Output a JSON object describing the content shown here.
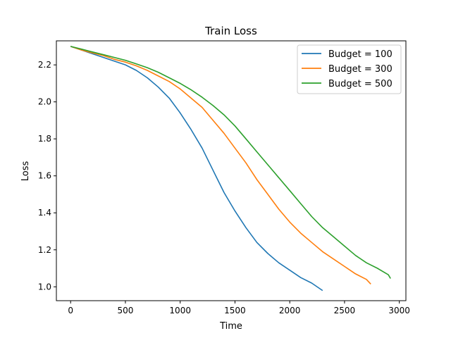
{
  "chart_data": {
    "type": "line",
    "title": "Train Loss",
    "xlabel": "Time",
    "ylabel": "Loss",
    "xlim": [
      -130,
      3060
    ],
    "ylim": [
      0.925,
      2.33
    ],
    "xticks": [
      0,
      500,
      1000,
      1500,
      2000,
      2500,
      3000
    ],
    "yticks": [
      1.0,
      1.2,
      1.4,
      1.6,
      1.8,
      2.0,
      2.2
    ],
    "ytick_format": 1,
    "grid": false,
    "legend_position": "top-right",
    "series": [
      {
        "name": "Budget = 100",
        "color": "#1f77b4",
        "x": [
          0,
          100,
          200,
          300,
          400,
          500,
          600,
          700,
          800,
          900,
          1000,
          1100,
          1200,
          1300,
          1400,
          1500,
          1600,
          1700,
          1800,
          1900,
          2000,
          2100,
          2200,
          2300
        ],
        "y": [
          2.3,
          2.28,
          2.26,
          2.24,
          2.22,
          2.2,
          2.17,
          2.13,
          2.08,
          2.02,
          1.94,
          1.85,
          1.75,
          1.63,
          1.51,
          1.41,
          1.32,
          1.24,
          1.18,
          1.13,
          1.09,
          1.05,
          1.02,
          0.98
        ]
      },
      {
        "name": "Budget = 300",
        "color": "#ff7f0e",
        "x": [
          0,
          100,
          200,
          300,
          400,
          500,
          600,
          700,
          800,
          900,
          1000,
          1100,
          1200,
          1300,
          1400,
          1500,
          1600,
          1700,
          1800,
          1900,
          2000,
          2100,
          2200,
          2300,
          2400,
          2500,
          2600,
          2700,
          2740
        ],
        "y": [
          2.3,
          2.28,
          2.265,
          2.25,
          2.23,
          2.215,
          2.195,
          2.17,
          2.14,
          2.11,
          2.07,
          2.02,
          1.97,
          1.9,
          1.83,
          1.75,
          1.67,
          1.58,
          1.5,
          1.42,
          1.35,
          1.29,
          1.24,
          1.19,
          1.15,
          1.11,
          1.07,
          1.04,
          1.015
        ]
      },
      {
        "name": "Budget = 500",
        "color": "#2ca02c",
        "x": [
          0,
          100,
          200,
          300,
          400,
          500,
          600,
          700,
          800,
          900,
          1000,
          1100,
          1200,
          1300,
          1400,
          1500,
          1600,
          1700,
          1800,
          1900,
          2000,
          2100,
          2200,
          2300,
          2400,
          2500,
          2600,
          2700,
          2800,
          2900,
          2920
        ],
        "y": [
          2.3,
          2.285,
          2.27,
          2.255,
          2.24,
          2.225,
          2.205,
          2.185,
          2.16,
          2.13,
          2.1,
          2.065,
          2.025,
          1.98,
          1.93,
          1.87,
          1.8,
          1.73,
          1.66,
          1.59,
          1.52,
          1.45,
          1.38,
          1.32,
          1.27,
          1.22,
          1.17,
          1.13,
          1.1,
          1.065,
          1.045
        ]
      }
    ]
  }
}
